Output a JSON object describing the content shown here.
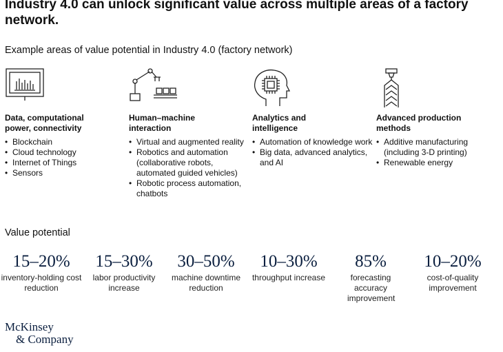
{
  "header": {
    "title": "Industry 4.0 can unlock significant value across multiple areas of a factory network.",
    "subtitle": "Example areas of value potential in Industry 4.0 (factory network)"
  },
  "areas": [
    {
      "icon": "computer-monitor-icon",
      "heading_line1": "Data, computational",
      "heading_line2": "power, connectivity",
      "items": [
        "Blockchain",
        "Cloud technology",
        "Internet of Things",
        "Sensors"
      ]
    },
    {
      "icon": "robot-arm-icon",
      "heading_line1": "Human–machine",
      "heading_line2": "interaction",
      "items": [
        "Virtual and augmented reality",
        "Robotics and automation (collaborative robots, automated guided vehicles)",
        "Robotic process automation, chatbots"
      ]
    },
    {
      "icon": "brain-chip-icon",
      "heading_line1": "Analytics and",
      "heading_line2": "intelligence",
      "items": [
        "Automation of knowledge work",
        "Big data, advanced analytics, and AI"
      ]
    },
    {
      "icon": "3d-printer-icon",
      "heading_line1": "Advanced production",
      "heading_line2": "methods",
      "items": [
        "Additive manufacturing (including 3-D printing)",
        "Renewable energy"
      ]
    }
  ],
  "value_potential": {
    "title": "Value potential",
    "metrics": [
      {
        "value": "15–20%",
        "label": "inventory-holding cost reduction"
      },
      {
        "value": "15–30%",
        "label": "labor productivity increase"
      },
      {
        "value": "30–50%",
        "label": "machine downtime reduction"
      },
      {
        "value": "10–30%",
        "label": "throughput increase"
      },
      {
        "value": "85%",
        "label": "forecasting accuracy improvement"
      },
      {
        "value": "10–20%",
        "label": "cost-of-quality improvement"
      }
    ]
  },
  "logo": {
    "line1": "McKinsey",
    "line2": "& Company"
  },
  "colors": {
    "text": "#111111",
    "accent_navy": "#0b1f3f"
  }
}
